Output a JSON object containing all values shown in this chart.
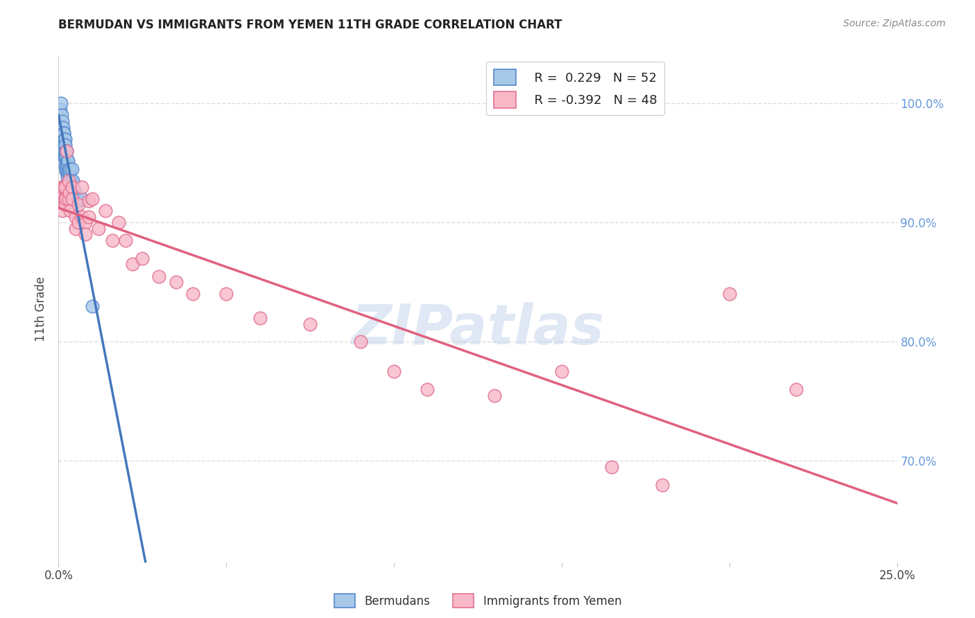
{
  "title": "BERMUDAN VS IMMIGRANTS FROM YEMEN 11TH GRADE CORRELATION CHART",
  "source": "Source: ZipAtlas.com",
  "ylabel": "11th Grade",
  "yaxis_labels": [
    "70.0%",
    "80.0%",
    "90.0%",
    "100.0%"
  ],
  "yaxis_values": [
    0.7,
    0.8,
    0.9,
    1.0
  ],
  "xlim": [
    0.0,
    0.25
  ],
  "ylim": [
    0.615,
    1.04
  ],
  "blue_R": 0.229,
  "blue_N": 52,
  "pink_R": -0.392,
  "pink_N": 48,
  "blue_color": "#A8C8E8",
  "blue_edge_color": "#5588CC",
  "blue_line_color": "#4477BB",
  "pink_color": "#F8B8C8",
  "pink_edge_color": "#E07090",
  "pink_line_color": "#E06080",
  "blue_scatter_x": [
    0.0005,
    0.0008,
    0.001,
    0.001,
    0.0012,
    0.0012,
    0.0013,
    0.0013,
    0.0014,
    0.0015,
    0.0015,
    0.0016,
    0.0016,
    0.0017,
    0.0017,
    0.0018,
    0.0018,
    0.0019,
    0.0019,
    0.002,
    0.002,
    0.002,
    0.0021,
    0.0021,
    0.0022,
    0.0022,
    0.0023,
    0.0023,
    0.0024,
    0.0025,
    0.0025,
    0.0026,
    0.0027,
    0.0027,
    0.0028,
    0.0028,
    0.003,
    0.003,
    0.0032,
    0.0033,
    0.0035,
    0.0035,
    0.0038,
    0.004,
    0.004,
    0.004,
    0.0042,
    0.0045,
    0.005,
    0.006,
    0.007,
    0.01
  ],
  "blue_scatter_y": [
    0.995,
    1.0,
    0.99,
    0.98,
    0.985,
    0.975,
    0.97,
    0.96,
    0.98,
    0.975,
    0.965,
    0.975,
    0.965,
    0.97,
    0.96,
    0.965,
    0.955,
    0.97,
    0.958,
    0.965,
    0.955,
    0.948,
    0.96,
    0.952,
    0.958,
    0.945,
    0.955,
    0.943,
    0.95,
    0.96,
    0.945,
    0.952,
    0.948,
    0.938,
    0.952,
    0.942,
    0.945,
    0.935,
    0.942,
    0.938,
    0.945,
    0.932,
    0.935,
    0.945,
    0.932,
    0.92,
    0.935,
    0.928,
    0.925,
    0.918,
    0.92,
    0.83
  ],
  "pink_scatter_x": [
    0.0005,
    0.001,
    0.0012,
    0.0015,
    0.0018,
    0.002,
    0.002,
    0.0022,
    0.0025,
    0.003,
    0.003,
    0.0032,
    0.0035,
    0.004,
    0.004,
    0.005,
    0.005,
    0.006,
    0.006,
    0.007,
    0.007,
    0.008,
    0.008,
    0.009,
    0.009,
    0.01,
    0.012,
    0.014,
    0.016,
    0.018,
    0.02,
    0.022,
    0.025,
    0.03,
    0.035,
    0.04,
    0.05,
    0.06,
    0.075,
    0.09,
    0.1,
    0.11,
    0.13,
    0.15,
    0.165,
    0.18,
    0.2,
    0.22
  ],
  "pink_scatter_y": [
    0.925,
    0.93,
    0.91,
    0.93,
    0.92,
    0.93,
    0.915,
    0.92,
    0.96,
    0.935,
    0.92,
    0.925,
    0.91,
    0.93,
    0.92,
    0.895,
    0.905,
    0.915,
    0.9,
    0.93,
    0.905,
    0.9,
    0.89,
    0.918,
    0.905,
    0.92,
    0.895,
    0.91,
    0.885,
    0.9,
    0.885,
    0.865,
    0.87,
    0.855,
    0.85,
    0.84,
    0.84,
    0.82,
    0.815,
    0.8,
    0.775,
    0.76,
    0.755,
    0.775,
    0.695,
    0.68,
    0.84,
    0.76
  ],
  "watermark": "ZIPatlas",
  "grid_color": "#DDDDDD",
  "background_color": "#FFFFFF",
  "xtick_positions": [
    0.0,
    0.05,
    0.1,
    0.15,
    0.2,
    0.25
  ],
  "xtick_show": [
    true,
    false,
    false,
    false,
    false,
    true
  ]
}
